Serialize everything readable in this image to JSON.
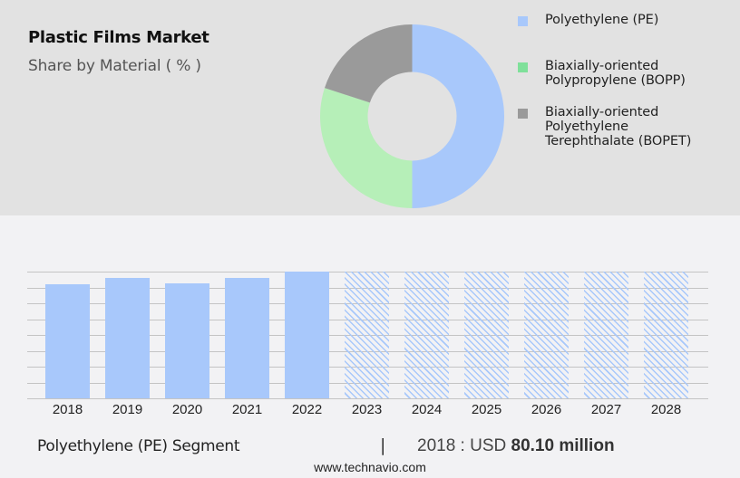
{
  "header": {
    "title": "Plastic Films Market",
    "subtitle": "Share by Material ( % )"
  },
  "legend": [
    {
      "label": "Polyethylene (PE)",
      "color": "#a8c8fb"
    },
    {
      "label": "Biaxially-oriented\nPolypropylene (BOPP)",
      "color": "#7fe09a"
    },
    {
      "label": "Biaxially-oriented\nPolyethylene\nTerephthalate (BOPET)",
      "color": "#9a9a9a"
    }
  ],
  "footer": {
    "segment": "Polyethylene (PE) Segment",
    "separator": "|",
    "value_prefix": "2018 : USD ",
    "value_bold": "80.10 million",
    "url": "www.technavio.com"
  },
  "chart_data": [
    {
      "type": "pie",
      "title": "Plastic Films Market",
      "subtitle": "Share by Material ( % )",
      "donut": true,
      "categories": [
        "Polyethylene (PE)",
        "Biaxially-oriented Polypropylene (BOPP)",
        "Biaxially-oriented Polyethylene Terephthalate (BOPET)"
      ],
      "values": [
        50,
        30,
        20
      ],
      "colors": [
        "#a8c8fb",
        "#b6efb8",
        "#9a9a9a"
      ],
      "legend_position": "right"
    },
    {
      "type": "bar",
      "title": "Polyethylene (PE) Segment",
      "categories": [
        "2018",
        "2019",
        "2020",
        "2021",
        "2022",
        "2023",
        "2024",
        "2025",
        "2026",
        "2027",
        "2028"
      ],
      "values": [
        80.1,
        84.6,
        80.7,
        84.6,
        89.0,
        null,
        null,
        null,
        null,
        null,
        null
      ],
      "forecast_years": [
        "2023",
        "2024",
        "2025",
        "2026",
        "2027",
        "2028"
      ],
      "units": "USD million",
      "annotation": "2018 : USD 80.10 million",
      "ylim": [
        0,
        89.0
      ],
      "grid": true,
      "y_tick_labels_visible": false,
      "color": "#a8c8fb"
    }
  ]
}
